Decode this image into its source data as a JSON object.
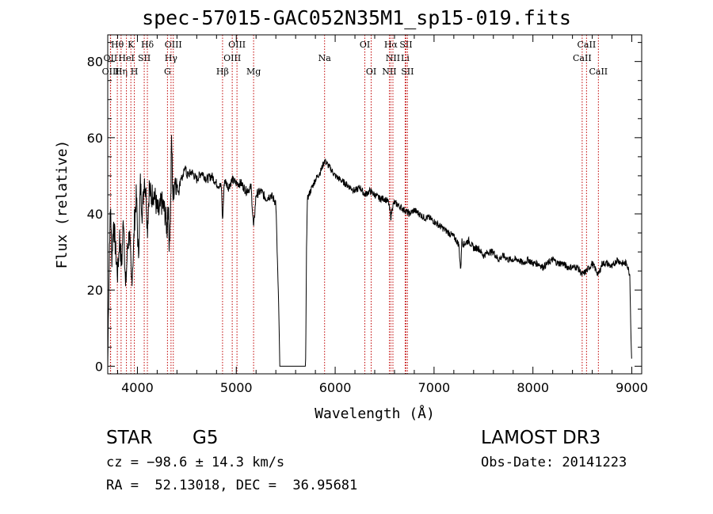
{
  "chart_data": {
    "type": "line",
    "title": "spec-57015-GAC052N35M1_sp15-019.fits",
    "xlabel": "Wavelength (Å)",
    "ylabel": "Flux (relative)",
    "xlim": [
      3700,
      9100
    ],
    "ylim": [
      -2,
      87
    ],
    "xticks": [
      4000,
      5000,
      6000,
      7000,
      8000,
      9000
    ],
    "yticks": [
      0,
      20,
      40,
      60,
      80
    ],
    "grid": false,
    "series": [
      {
        "name": "spectrum",
        "x": [
          3700,
          3710,
          3720,
          3730,
          3740,
          3760,
          3780,
          3800,
          3820,
          3840,
          3860,
          3880,
          3900,
          3920,
          3940,
          3960,
          3970,
          3990,
          4010,
          4030,
          4050,
          4070,
          4090,
          4101,
          4120,
          4140,
          4160,
          4180,
          4200,
          4220,
          4240,
          4260,
          4280,
          4300,
          4310,
          4320,
          4330,
          4340,
          4345,
          4360,
          4380,
          4400,
          4420,
          4440,
          4460,
          4480,
          4500,
          4550,
          4600,
          4650,
          4700,
          4750,
          4800,
          4850,
          4861,
          4880,
          4920,
          4960,
          5000,
          5050,
          5100,
          5150,
          5175,
          5200,
          5250,
          5300,
          5350,
          5400,
          5430,
          5440,
          5450,
          5700,
          5705,
          5710,
          5720,
          5750,
          5800,
          5850,
          5893,
          5950,
          6000,
          6050,
          6100,
          6150,
          6200,
          6250,
          6300,
          6350,
          6400,
          6450,
          6500,
          6540,
          6563,
          6580,
          6600,
          6650,
          6700,
          6750,
          6800,
          6850,
          6900,
          6950,
          7000,
          7050,
          7100,
          7150,
          7200,
          7250,
          7270,
          7280,
          7300,
          7350,
          7400,
          7450,
          7500,
          7550,
          7600,
          7650,
          7700,
          7750,
          7800,
          7850,
          7900,
          7950,
          8000,
          8050,
          8100,
          8150,
          8200,
          8250,
          8300,
          8350,
          8400,
          8450,
          8498,
          8542,
          8600,
          8662,
          8700,
          8750,
          8800,
          8850,
          8900,
          8950,
          8980,
          8990,
          9000
        ],
        "values": [
          0,
          20,
          35,
          42,
          28,
          38,
          30,
          24,
          34,
          26,
          40,
          20,
          31,
          35,
          22,
          30,
          38,
          45,
          28,
          48,
          40,
          50,
          44,
          36,
          47,
          44,
          46,
          44,
          41,
          40,
          43,
          42,
          40,
          36,
          44,
          33,
          36,
          48,
          60,
          44,
          50,
          47,
          46,
          50,
          49,
          53,
          50,
          51,
          49,
          51,
          49,
          50,
          48,
          47,
          38,
          49,
          47,
          49,
          48,
          48,
          46,
          47,
          36,
          45,
          46,
          44,
          45,
          43,
          14,
          0,
          0,
          0,
          10,
          32,
          44,
          46,
          49,
          51,
          54,
          52,
          50,
          49,
          48,
          47,
          46,
          47,
          45,
          46,
          45,
          44,
          44,
          43,
          39,
          42,
          43,
          42,
          41,
          40,
          41,
          40,
          39,
          39,
          38,
          37,
          36,
          35,
          34,
          32,
          25,
          33,
          32,
          33,
          31,
          31,
          29,
          30,
          30,
          28,
          29,
          28,
          28,
          28,
          27,
          28,
          27,
          27,
          26,
          27,
          28,
          27,
          27,
          26,
          26,
          26,
          24,
          25,
          27,
          24,
          27,
          27,
          26,
          28,
          27,
          27,
          24,
          10,
          0
        ]
      }
    ],
    "line_markers": [
      {
        "label": "Hθ",
        "x": 3797,
        "row": 1
      },
      {
        "label": "OII",
        "x": 3727,
        "row": 2
      },
      {
        "label": "OIII",
        "x": 3729,
        "row": 3
      },
      {
        "label": "Hη",
        "x": 3835,
        "row": 3
      },
      {
        "label": "K",
        "x": 3934,
        "row": 1
      },
      {
        "label": "HeI",
        "x": 3889,
        "row": 2
      },
      {
        "label": "H",
        "x": 3969,
        "row": 3
      },
      {
        "label": "SII",
        "x": 4069,
        "row": 2
      },
      {
        "label": "Hδ",
        "x": 4101,
        "row": 1
      },
      {
        "label": "OIII",
        "x": 4363,
        "row": 1
      },
      {
        "label": "Hγ",
        "x": 4340,
        "row": 2
      },
      {
        "label": "G",
        "x": 4304,
        "row": 3
      },
      {
        "label": "OIII",
        "x": 5007,
        "row": 1
      },
      {
        "label": "OIII",
        "x": 4959,
        "row": 2
      },
      {
        "label": "Hβ",
        "x": 4861,
        "row": 3
      },
      {
        "label": "Mg",
        "x": 5175,
        "row": 3
      },
      {
        "label": "Na",
        "x": 5893,
        "row": 2
      },
      {
        "label": "OI",
        "x": 6300,
        "row": 1
      },
      {
        "label": "OI",
        "x": 6364,
        "row": 3
      },
      {
        "label": "Hα",
        "x": 6563,
        "row": 1
      },
      {
        "label": "SII",
        "x": 6716,
        "row": 1
      },
      {
        "label": "NII",
        "x": 6584,
        "row": 2
      },
      {
        "label": "Li",
        "x": 6708,
        "row": 2
      },
      {
        "label": "NII",
        "x": 6548,
        "row": 3
      },
      {
        "label": "SII",
        "x": 6731,
        "row": 3
      },
      {
        "label": "CaII",
        "x": 8542,
        "row": 1
      },
      {
        "label": "CaII",
        "x": 8498,
        "row": 2
      },
      {
        "label": "CaII",
        "x": 8662,
        "row": 3
      }
    ]
  },
  "info": {
    "object_class": "STAR",
    "subclass": "G5",
    "cz": "cz = −98.6 ± 14.3 km/s",
    "coords": "RA =  52.13018, DEC =  36.95681",
    "survey": "LAMOST DR3",
    "obs_date": "Obs-Date: 20141223"
  }
}
